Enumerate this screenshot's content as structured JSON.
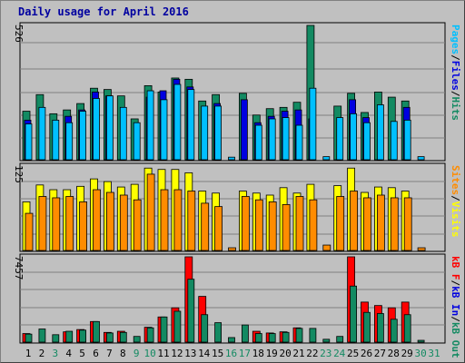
{
  "title": "Daily usage for April 2016",
  "colors": {
    "background": "#c0c0c0",
    "hits": "#138a62",
    "files": "#0000e0",
    "pages": "#00c0ff",
    "visits": "#ffff00",
    "sites": "#ff8c00",
    "kb_f": "#ff0000",
    "kb_in": "#0000e0",
    "kb_out": "#138a62",
    "weekend_label": "#138a62",
    "weekday_label": "#000000",
    "title": "#0000a0"
  },
  "chart_data": [
    {
      "type": "bar",
      "panel": "hits-files-pages",
      "ymax_label": "526",
      "ylim": [
        0,
        526
      ],
      "legend": [
        "Pages",
        "/",
        "Files",
        "/",
        "Hits"
      ],
      "x": [
        1,
        2,
        3,
        4,
        5,
        6,
        7,
        8,
        9,
        10,
        11,
        12,
        13,
        14,
        15,
        16,
        17,
        18,
        19,
        20,
        21,
        22,
        23,
        24,
        25,
        26,
        27,
        28,
        29,
        30,
        31
      ],
      "series": [
        {
          "name": "Hits",
          "values": [
            190,
            255,
            180,
            195,
            220,
            280,
            275,
            250,
            160,
            290,
            265,
            320,
            315,
            230,
            255,
            0,
            260,
            175,
            200,
            205,
            225,
            526,
            0,
            210,
            260,
            185,
            265,
            245,
            230,
            0,
            0
          ]
        },
        {
          "name": "Files",
          "values": [
            155,
            0,
            0,
            170,
            195,
            265,
            250,
            0,
            0,
            245,
            270,
            315,
            285,
            0,
            220,
            0,
            235,
            145,
            170,
            190,
            195,
            160,
            0,
            0,
            235,
            165,
            0,
            0,
            205,
            0,
            0
          ]
        },
        {
          "name": "Pages",
          "values": [
            140,
            205,
            155,
            145,
            190,
            240,
            250,
            205,
            145,
            270,
            235,
            295,
            275,
            210,
            210,
            10,
            0,
            135,
            160,
            165,
            135,
            280,
            12,
            165,
            180,
            145,
            215,
            150,
            155,
            12,
            0
          ]
        }
      ]
    },
    {
      "type": "bar",
      "panel": "visits-sites",
      "ymax_label": "125",
      "ylim": [
        0,
        125
      ],
      "legend": [
        "Sites",
        "/",
        "Visits"
      ],
      "x": [
        1,
        2,
        3,
        4,
        5,
        6,
        7,
        8,
        9,
        10,
        11,
        12,
        13,
        14,
        15,
        16,
        17,
        18,
        19,
        20,
        21,
        22,
        23,
        24,
        25,
        26,
        27,
        28,
        29,
        30,
        31
      ],
      "series": [
        {
          "name": "Visits",
          "values": [
            72,
            97,
            90,
            90,
            95,
            106,
            102,
            94,
            98,
            122,
            120,
            120,
            115,
            88,
            85,
            0,
            88,
            85,
            82,
            93,
            85,
            98,
            0,
            96,
            122,
            86,
            94,
            93,
            88,
            0,
            0
          ]
        },
        {
          "name": "Sites",
          "values": [
            55,
            80,
            78,
            80,
            72,
            90,
            86,
            82,
            75,
            113,
            90,
            90,
            88,
            70,
            65,
            4,
            80,
            75,
            72,
            68,
            80,
            75,
            8,
            80,
            88,
            78,
            82,
            78,
            78,
            4,
            0
          ]
        }
      ]
    },
    {
      "type": "bar",
      "panel": "kb",
      "ymax_label": "7457",
      "ylim": [
        0,
        7457
      ],
      "legend": [
        "kB F",
        "/",
        "kB In",
        "/",
        "kB Out"
      ],
      "x": [
        1,
        2,
        3,
        4,
        5,
        6,
        7,
        8,
        9,
        10,
        11,
        12,
        13,
        14,
        15,
        16,
        17,
        18,
        19,
        20,
        21,
        22,
        23,
        24,
        25,
        26,
        27,
        28,
        29,
        30,
        31
      ],
      "series": [
        {
          "name": "kB F",
          "values": [
            750,
            0,
            0,
            900,
            1100,
            1800,
            850,
            950,
            0,
            1300,
            2200,
            3000,
            7457,
            4000,
            0,
            0,
            0,
            950,
            800,
            900,
            1250,
            0,
            0,
            0,
            7457,
            3500,
            3200,
            3000,
            3500,
            0,
            0
          ]
        },
        {
          "name": "kB In",
          "values": [
            0,
            0,
            0,
            0,
            0,
            0,
            0,
            0,
            0,
            0,
            0,
            0,
            0,
            0,
            0,
            0,
            0,
            0,
            0,
            0,
            0,
            0,
            0,
            0,
            0,
            0,
            0,
            0,
            0,
            0,
            0
          ]
        },
        {
          "name": "kB Out",
          "values": [
            700,
            1150,
            650,
            950,
            1050,
            1800,
            800,
            850,
            500,
            1250,
            2200,
            2700,
            5500,
            2400,
            1700,
            400,
            1500,
            750,
            750,
            850,
            1200,
            1200,
            250,
            500,
            4900,
            2600,
            2500,
            2000,
            2400,
            150,
            0
          ]
        }
      ]
    }
  ],
  "x_labels": [
    {
      "label": "1",
      "weekend": false
    },
    {
      "label": "2",
      "weekend": false
    },
    {
      "label": "3",
      "weekend": true
    },
    {
      "label": "4",
      "weekend": false
    },
    {
      "label": "5",
      "weekend": false
    },
    {
      "label": "6",
      "weekend": false
    },
    {
      "label": "7",
      "weekend": false
    },
    {
      "label": "8",
      "weekend": false
    },
    {
      "label": "9",
      "weekend": true
    },
    {
      "label": "10",
      "weekend": true
    },
    {
      "label": "11",
      "weekend": false
    },
    {
      "label": "12",
      "weekend": false
    },
    {
      "label": "13",
      "weekend": false
    },
    {
      "label": "14",
      "weekend": false
    },
    {
      "label": "15",
      "weekend": false
    },
    {
      "label": "16",
      "weekend": true
    },
    {
      "label": "17",
      "weekend": true
    },
    {
      "label": "18",
      "weekend": false
    },
    {
      "label": "19",
      "weekend": false
    },
    {
      "label": "20",
      "weekend": false
    },
    {
      "label": "21",
      "weekend": false
    },
    {
      "label": "22",
      "weekend": false
    },
    {
      "label": "23",
      "weekend": true
    },
    {
      "label": "24",
      "weekend": true
    },
    {
      "label": "25",
      "weekend": false
    },
    {
      "label": "26",
      "weekend": false
    },
    {
      "label": "27",
      "weekend": false
    },
    {
      "label": "28",
      "weekend": false
    },
    {
      "label": "29",
      "weekend": false
    },
    {
      "label": "30",
      "weekend": true
    },
    {
      "label": "31",
      "weekend": true
    }
  ]
}
